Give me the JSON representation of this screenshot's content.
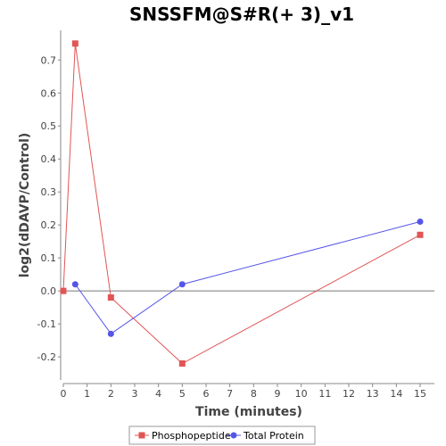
{
  "chart_data": {
    "type": "line",
    "title": "SNSSFM@S#R(+ 3)_v1",
    "xlabel": "Time (minutes)",
    "ylabel": "log2(dDAVP/Control)",
    "xlim": [
      0,
      15.6
    ],
    "ylim": [
      -0.27,
      0.79
    ],
    "xticks": [
      0,
      1,
      2,
      3,
      4,
      5,
      6,
      7,
      8,
      9,
      10,
      11,
      12,
      13,
      14,
      15
    ],
    "yticks": [
      -0.2,
      -0.1,
      0.0,
      0.1,
      0.2,
      0.3,
      0.4,
      0.5,
      0.6,
      0.7
    ],
    "ytick_labels": [
      "-0.2",
      "-0.1",
      "0.0",
      "0.1",
      "0.2",
      "0.3",
      "0.4",
      "0.5",
      "0.6",
      "0.7"
    ],
    "zero_line": true,
    "grid": false,
    "legend_position": "bottom",
    "series": [
      {
        "name": "Phosphopeptide",
        "color": "#e05555",
        "marker": "square",
        "x": [
          0,
          0.5,
          2,
          5,
          15
        ],
        "y": [
          0.0,
          0.75,
          -0.02,
          -0.22,
          0.17
        ]
      },
      {
        "name": "Total Protein",
        "color": "#5555e8",
        "marker": "circle",
        "x": [
          0.5,
          2,
          5,
          15
        ],
        "y": [
          0.02,
          -0.13,
          0.02,
          0.21
        ]
      }
    ]
  }
}
